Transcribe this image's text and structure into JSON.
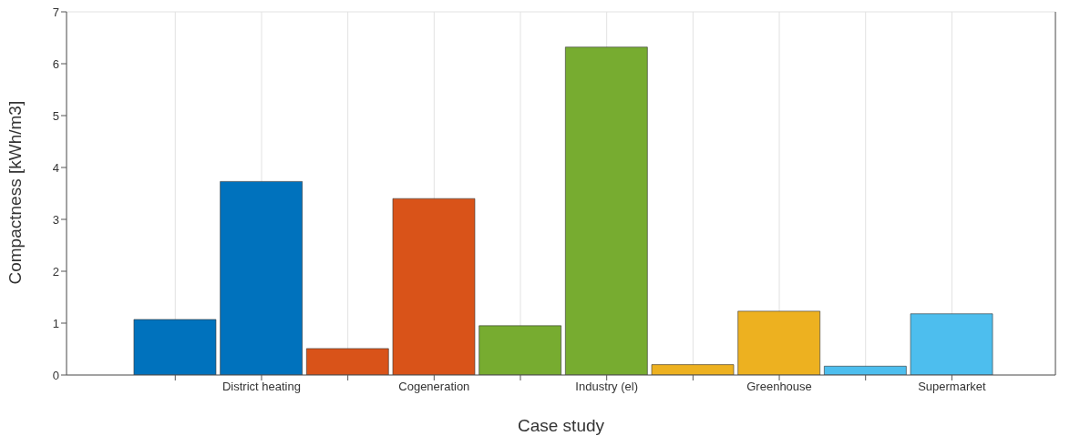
{
  "chart_data": {
    "type": "bar",
    "xlabel": "Case study",
    "ylabel": "Compactness [kWh/m3]",
    "categories": [
      null,
      "District heating",
      null,
      "Cogeneration",
      null,
      "Industry (el)",
      null,
      "Greenhouse",
      null,
      "Supermarket"
    ],
    "values": [
      1.07,
      3.73,
      0.51,
      3.4,
      0.95,
      6.32,
      0.2,
      1.23,
      0.17,
      1.18
    ],
    "colors": [
      "#0072bd",
      "#0072bd",
      "#d95319",
      "#d95319",
      "#77ac30",
      "#77ac30",
      "#edb120",
      "#edb120",
      "#4dbeee",
      "#4dbeee"
    ],
    "ylim": [
      0,
      7
    ],
    "yticks": [
      0,
      1,
      2,
      3,
      4,
      5,
      6,
      7
    ],
    "grid": true
  }
}
